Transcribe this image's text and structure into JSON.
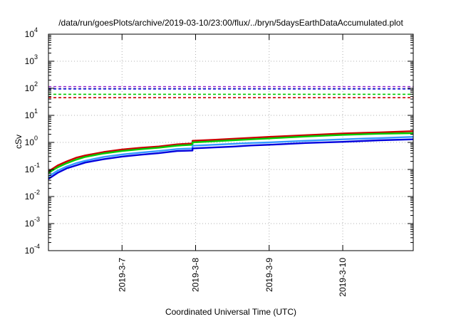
{
  "chart_data": {
    "type": "line",
    "title": "/data/run/goesPlots/archive/2019-03-10/23:00/flux/../bryn/5daysEarthDataAccumulated.plot",
    "xlabel": "Coordinated Universal Time (UTC)",
    "ylabel": "cSv",
    "yscale": "log",
    "ylim": [
      0.0001,
      10000
    ],
    "xlim": [
      "2019-03-06T00:00",
      "2019-03-10T23:00"
    ],
    "y_ticks": [
      {
        "base": "10",
        "exp": "-4",
        "value": 0.0001
      },
      {
        "base": "10",
        "exp": "-3",
        "value": 0.001
      },
      {
        "base": "10",
        "exp": "-2",
        "value": 0.01
      },
      {
        "base": "10",
        "exp": "-1",
        "value": 0.1
      },
      {
        "base": "10",
        "exp": "0",
        "value": 1
      },
      {
        "base": "10",
        "exp": "1",
        "value": 10
      },
      {
        "base": "10",
        "exp": "2",
        "value": 100
      },
      {
        "base": "10",
        "exp": "3",
        "value": 1000
      },
      {
        "base": "10",
        "exp": "4",
        "value": 10000
      }
    ],
    "x_ticks": [
      {
        "label": "2019-3-7",
        "date": "2019-03-07T00:00"
      },
      {
        "label": "2019-3-8",
        "date": "2019-03-08T00:00"
      },
      {
        "label": "2019-3-9",
        "date": "2019-03-09T00:00"
      },
      {
        "label": "2019-3-10",
        "date": "2019-03-10T00:00"
      }
    ],
    "grid": true,
    "thresholds": [
      {
        "value": 115,
        "color": "#9933cc"
      },
      {
        "value": 95,
        "color": "#0000cc"
      },
      {
        "value": 60,
        "color": "#00cc00"
      },
      {
        "value": 45,
        "color": "#cc0000"
      }
    ],
    "series": [
      {
        "color": "#cc0000",
        "points": [
          [
            "2019-03-06T00:00",
            0.085
          ],
          [
            "2019-03-06T03:00",
            0.14
          ],
          [
            "2019-03-06T06:00",
            0.2
          ],
          [
            "2019-03-06T09:00",
            0.27
          ],
          [
            "2019-03-06T12:00",
            0.33
          ],
          [
            "2019-03-06T18:00",
            0.44
          ],
          [
            "2019-03-07T00:00",
            0.55
          ],
          [
            "2019-03-07T06:00",
            0.63
          ],
          [
            "2019-03-07T12:00",
            0.71
          ],
          [
            "2019-03-07T18:00",
            0.85
          ],
          [
            "2019-03-07T23:00",
            0.92
          ],
          [
            "2019-03-07T23:00",
            1.15
          ],
          [
            "2019-03-08T06:00",
            1.25
          ],
          [
            "2019-03-08T12:00",
            1.35
          ],
          [
            "2019-03-08T18:00",
            1.47
          ],
          [
            "2019-03-09T00:00",
            1.6
          ],
          [
            "2019-03-09T12:00",
            1.85
          ],
          [
            "2019-03-10T00:00",
            2.15
          ],
          [
            "2019-03-10T12:00",
            2.35
          ],
          [
            "2019-03-10T23:00",
            2.6
          ]
        ]
      },
      {
        "color": "#00cc00",
        "points": [
          [
            "2019-03-06T00:00",
            0.075
          ],
          [
            "2019-03-06T03:00",
            0.12
          ],
          [
            "2019-03-06T06:00",
            0.17
          ],
          [
            "2019-03-06T09:00",
            0.23
          ],
          [
            "2019-03-06T12:00",
            0.29
          ],
          [
            "2019-03-06T18:00",
            0.39
          ],
          [
            "2019-03-07T00:00",
            0.48
          ],
          [
            "2019-03-07T06:00",
            0.56
          ],
          [
            "2019-03-07T12:00",
            0.64
          ],
          [
            "2019-03-07T18:00",
            0.76
          ],
          [
            "2019-03-07T23:00",
            0.82
          ],
          [
            "2019-03-07T23:00",
            1.0
          ],
          [
            "2019-03-08T06:00",
            1.1
          ],
          [
            "2019-03-08T12:00",
            1.2
          ],
          [
            "2019-03-08T18:00",
            1.3
          ],
          [
            "2019-03-09T00:00",
            1.4
          ],
          [
            "2019-03-09T12:00",
            1.65
          ],
          [
            "2019-03-10T00:00",
            1.9
          ],
          [
            "2019-03-10T12:00",
            2.1
          ],
          [
            "2019-03-10T23:00",
            2.2
          ]
        ]
      },
      {
        "color": "#3399ff",
        "points": [
          [
            "2019-03-06T00:00",
            0.055
          ],
          [
            "2019-03-06T03:00",
            0.09
          ],
          [
            "2019-03-06T06:00",
            0.13
          ],
          [
            "2019-03-06T09:00",
            0.17
          ],
          [
            "2019-03-06T12:00",
            0.21
          ],
          [
            "2019-03-06T18:00",
            0.29
          ],
          [
            "2019-03-07T00:00",
            0.36
          ],
          [
            "2019-03-07T06:00",
            0.42
          ],
          [
            "2019-03-07T12:00",
            0.48
          ],
          [
            "2019-03-07T18:00",
            0.57
          ],
          [
            "2019-03-07T23:00",
            0.6
          ],
          [
            "2019-03-07T23:00",
            0.75
          ],
          [
            "2019-03-08T06:00",
            0.82
          ],
          [
            "2019-03-08T12:00",
            0.88
          ],
          [
            "2019-03-08T18:00",
            0.95
          ],
          [
            "2019-03-09T00:00",
            1.0
          ],
          [
            "2019-03-09T12:00",
            1.15
          ],
          [
            "2019-03-10T00:00",
            1.3
          ],
          [
            "2019-03-10T12:00",
            1.45
          ],
          [
            "2019-03-10T23:00",
            1.6
          ]
        ]
      },
      {
        "color": "#0000dd",
        "points": [
          [
            "2019-03-06T00:00",
            0.045
          ],
          [
            "2019-03-06T03:00",
            0.075
          ],
          [
            "2019-03-06T06:00",
            0.11
          ],
          [
            "2019-03-06T09:00",
            0.14
          ],
          [
            "2019-03-06T12:00",
            0.18
          ],
          [
            "2019-03-06T18:00",
            0.24
          ],
          [
            "2019-03-07T00:00",
            0.3
          ],
          [
            "2019-03-07T06:00",
            0.35
          ],
          [
            "2019-03-07T12:00",
            0.4
          ],
          [
            "2019-03-07T18:00",
            0.48
          ],
          [
            "2019-03-07T23:00",
            0.5
          ],
          [
            "2019-03-07T23:00",
            0.6
          ],
          [
            "2019-03-08T06:00",
            0.65
          ],
          [
            "2019-03-08T12:00",
            0.7
          ],
          [
            "2019-03-08T18:00",
            0.77
          ],
          [
            "2019-03-09T00:00",
            0.82
          ],
          [
            "2019-03-09T12:00",
            0.95
          ],
          [
            "2019-03-10T00:00",
            1.05
          ],
          [
            "2019-03-10T12:00",
            1.2
          ],
          [
            "2019-03-10T23:00",
            1.3
          ]
        ]
      }
    ]
  }
}
